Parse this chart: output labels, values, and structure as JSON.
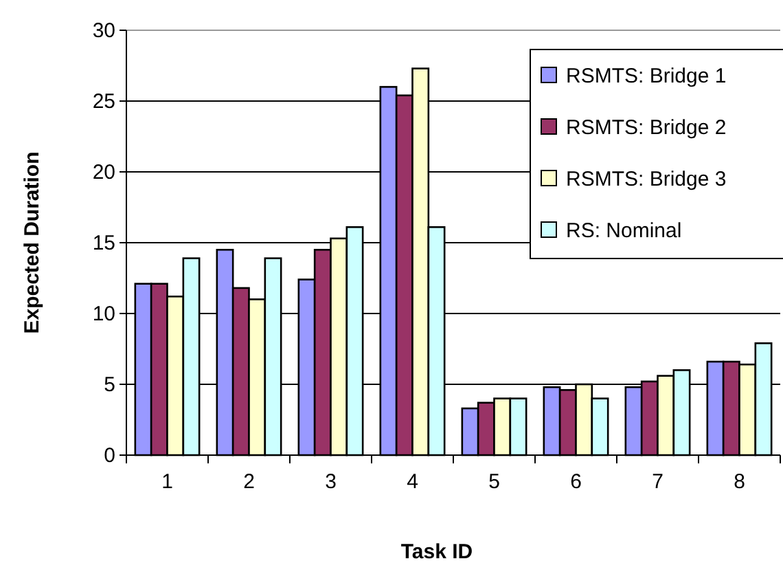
{
  "chart_data": {
    "type": "bar",
    "xlabel": "Task ID",
    "ylabel": "Expected Duration",
    "categories": [
      "1",
      "2",
      "3",
      "4",
      "5",
      "6",
      "7",
      "8"
    ],
    "series": [
      {
        "name": "RSMTS: Bridge 1",
        "color": "#9999ff",
        "values": [
          12.1,
          14.5,
          12.4,
          26.0,
          3.3,
          4.8,
          4.8,
          6.6
        ]
      },
      {
        "name": "RSMTS: Bridge 2",
        "color": "#993366",
        "values": [
          12.1,
          11.8,
          14.5,
          25.4,
          3.7,
          4.6,
          5.2,
          6.6
        ]
      },
      {
        "name": "RSMTS: Bridge 3",
        "color": "#ffffcc",
        "values": [
          11.2,
          11.0,
          15.3,
          27.3,
          4.0,
          5.0,
          5.6,
          6.4
        ]
      },
      {
        "name": "RS: Nominal",
        "color": "#ccffff",
        "values": [
          13.9,
          13.9,
          16.1,
          16.1,
          4.0,
          4.0,
          6.0,
          7.9
        ]
      }
    ],
    "ylim": [
      0,
      30
    ],
    "yticks": [
      0,
      5,
      10,
      15,
      20,
      25,
      30
    ],
    "grid": "y",
    "legend": "top right"
  }
}
